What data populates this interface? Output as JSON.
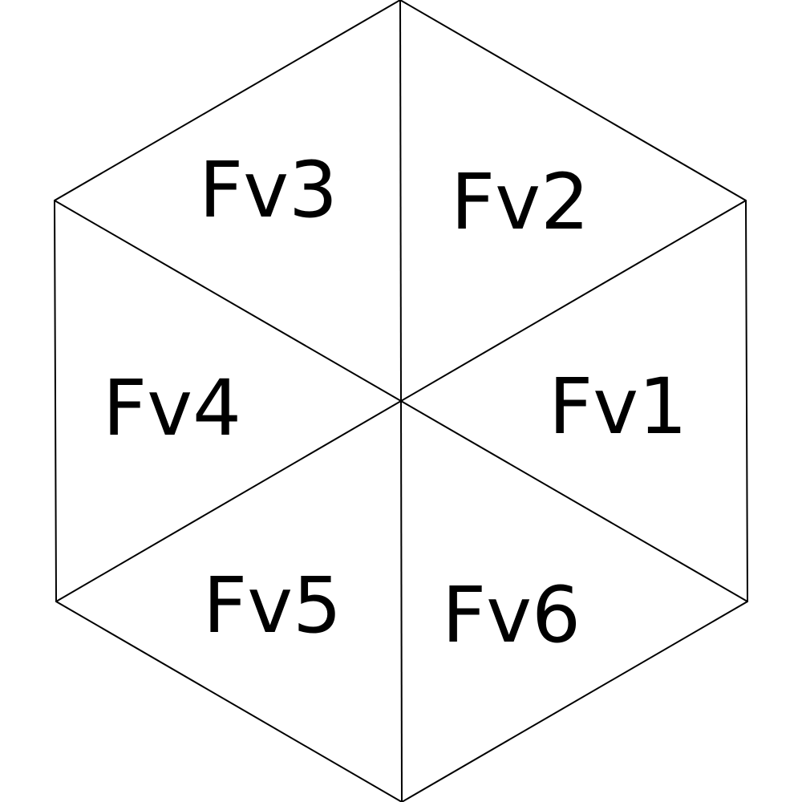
{
  "labels": {
    "fv1": "Fv1",
    "fv2": "Fv2",
    "fv3": "Fv3",
    "fv4": "Fv4",
    "fv5": "Fv5",
    "fv6": "Fv6"
  },
  "colors": {
    "stroke": "#000000",
    "text": "#000000",
    "background": "#ffffff"
  }
}
